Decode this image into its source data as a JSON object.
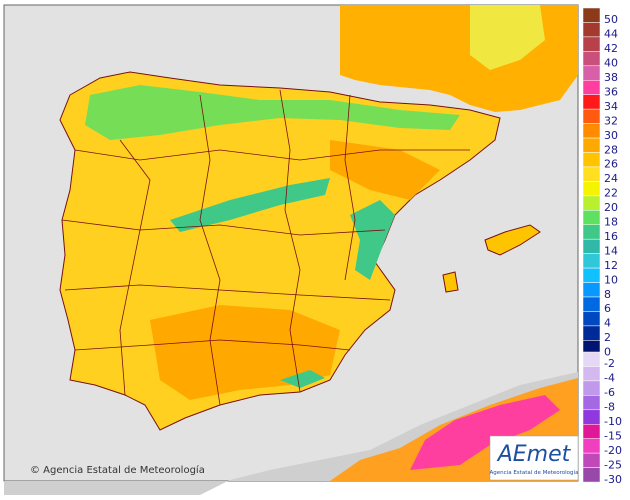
{
  "map": {
    "copyright": "© Agencia Estatal de Meteorología",
    "logo": {
      "brand": "AEmet",
      "caption": "Agencia Estatal de Meteorología"
    }
  },
  "legend": {
    "groups": [
      [
        {
          "label": "50",
          "color": "#8b3a1a"
        },
        {
          "label": "44",
          "color": "#a33a2e"
        },
        {
          "label": "42",
          "color": "#b8404a"
        },
        {
          "label": "40",
          "color": "#c8507a"
        },
        {
          "label": "38",
          "color": "#d860a8"
        },
        {
          "label": "36",
          "color": "#ff3fa0"
        },
        {
          "label": "34",
          "color": "#ff1a1a"
        },
        {
          "label": "32",
          "color": "#ff5a10"
        },
        {
          "label": "30",
          "color": "#ff8c00"
        },
        {
          "label": "28",
          "color": "#ffa800"
        },
        {
          "label": "26",
          "color": "#ffc400"
        },
        {
          "label": "24",
          "color": "#ffdf20"
        },
        {
          "label": "22",
          "color": "#f4f400"
        },
        {
          "label": "20",
          "color": "#b8f030"
        },
        {
          "label": "18",
          "color": "#5ee060"
        },
        {
          "label": "16",
          "color": "#40c888"
        },
        {
          "label": "14",
          "color": "#30b8a8"
        },
        {
          "label": "12",
          "color": "#30c8d8"
        },
        {
          "label": "10",
          "color": "#10c0ff"
        },
        {
          "label": "8",
          "color": "#0898ff"
        },
        {
          "label": "6",
          "color": "#0068e0"
        },
        {
          "label": "4",
          "color": "#0048c0"
        },
        {
          "label": "2",
          "color": "#002a98"
        },
        {
          "label": "0",
          "color": "#001470"
        }
      ],
      [
        {
          "label": "-2",
          "color": "#e4d8f4"
        },
        {
          "label": "-4",
          "color": "#d4b8f0"
        },
        {
          "label": "-6",
          "color": "#c098ec"
        },
        {
          "label": "-8",
          "color": "#a468e4"
        },
        {
          "label": "-10",
          "color": "#9038e0"
        },
        {
          "label": "-15",
          "color": "#e01898"
        },
        {
          "label": "-20",
          "color": "#f040c0"
        },
        {
          "label": "-25",
          "color": "#c048b8"
        },
        {
          "label": "-30",
          "color": "#9848a8"
        }
      ]
    ]
  }
}
